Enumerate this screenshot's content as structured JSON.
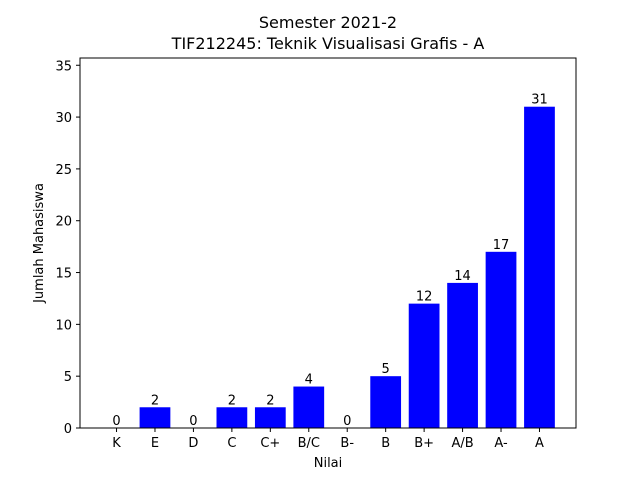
{
  "chart_data": {
    "type": "bar",
    "title_line1": "Semester 2021-2",
    "title_line2": "TIF212245: Teknik Visualisasi Grafis - A",
    "xlabel": "Nilai",
    "ylabel": "Jumlah Mahasiswa",
    "categories": [
      "K",
      "E",
      "D",
      "C",
      "C+",
      "B/C",
      "B-",
      "B",
      "B+",
      "A/B",
      "A-",
      "A"
    ],
    "values": [
      0,
      2,
      0,
      2,
      2,
      4,
      0,
      5,
      12,
      14,
      17,
      31
    ],
    "ylim": [
      0,
      35.7
    ],
    "yticks": [
      0,
      5,
      10,
      15,
      20,
      25,
      30,
      35
    ],
    "bar_color": "#0000ff",
    "grid": false
  }
}
